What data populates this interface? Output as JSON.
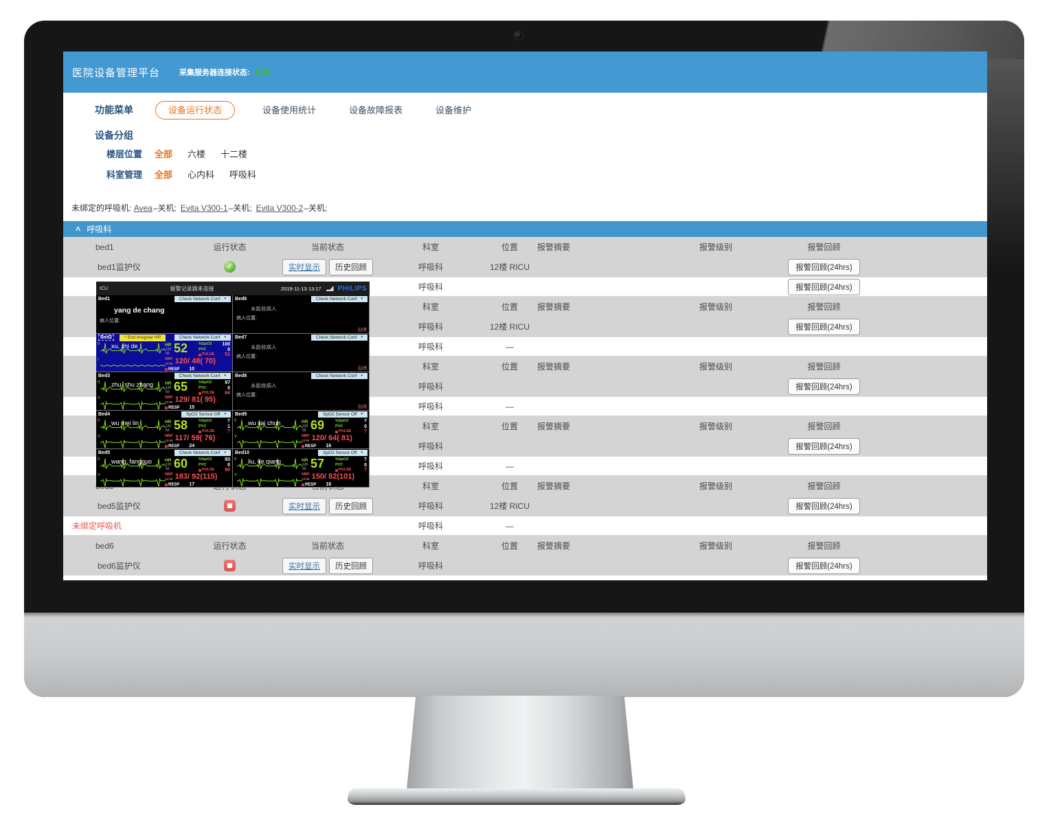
{
  "header": {
    "title": "医院设备管理平台",
    "server_label": "采集服务器连接状态:",
    "server_value": "正常"
  },
  "nav": {
    "menu": "功能菜单",
    "tabs": [
      {
        "label": "设备运行状态",
        "active": true
      },
      {
        "label": "设备使用统计",
        "active": false
      },
      {
        "label": "设备故障报表",
        "active": false
      },
      {
        "label": "设备维护",
        "active": false
      }
    ]
  },
  "filters": {
    "title": "设备分组",
    "rows": [
      {
        "label": "楼层位置",
        "options": [
          "全部",
          "六楼",
          "十二楼"
        ],
        "selected": "全部"
      },
      {
        "label": "科室管理",
        "options": [
          "全部",
          "心内科",
          "呼吸科"
        ],
        "selected": "全部"
      }
    ]
  },
  "unbound": {
    "prefix": "未绑定的呼吸机:",
    "machines": [
      {
        "name": "Avea",
        "state": "–关机;"
      },
      {
        "name": "Evita V300-1",
        "state": "–关机;"
      },
      {
        "name": "Evita V300-2",
        "state": "–关机;"
      }
    ]
  },
  "table": {
    "section_icon": "∧",
    "section_title": "呼吸科",
    "columns": [
      "运行状态",
      "当前状态",
      "科室",
      "位置",
      "报警摘要",
      "报警级别",
      "报警回顾"
    ],
    "actions": [
      "实时显示",
      "历史回顾"
    ],
    "review_label": "报警回顾(24hrs)",
    "groups": [
      {
        "bed": "bed1",
        "rows": [
          {
            "style": "gray",
            "name": "bed1监护仪",
            "status": "running",
            "actions": true,
            "dept": "呼吸科",
            "loc": "12楼 RICU",
            "review": true
          },
          {
            "style": "white",
            "name": "",
            "dept": "呼吸科",
            "loc": "",
            "review": true
          }
        ]
      },
      {
        "bed": "",
        "rows": [
          {
            "style": "gray",
            "name": "",
            "dept": "呼吸科",
            "loc": "12楼 RICU",
            "review": true
          },
          {
            "style": "white",
            "name": "",
            "dept": "呼吸科",
            "loc": "—",
            "review": false
          }
        ]
      },
      {
        "bed": "",
        "rows": [
          {
            "style": "gray",
            "name": "",
            "dept": "呼吸科",
            "loc": "",
            "review": true
          },
          {
            "style": "white",
            "name": "",
            "dept": "呼吸科",
            "loc": "—",
            "review": false
          }
        ]
      },
      {
        "bed": "",
        "rows": [
          {
            "style": "gray",
            "name": "",
            "dept": "呼吸科",
            "loc": "",
            "review": true
          },
          {
            "style": "white",
            "name": "",
            "dept": "呼吸科",
            "loc": "—",
            "review": false
          }
        ]
      },
      {
        "bed": "bed5",
        "rows": [
          {
            "style": "gray",
            "name": "bed5监护仪",
            "status": "stopped",
            "actions": true,
            "dept": "呼吸科",
            "loc": "12楼 RICU",
            "review": true
          },
          {
            "style": "white",
            "name": "未绑定呼吸机",
            "unbound": true,
            "dept": "呼吸科",
            "loc": "—",
            "review": false
          }
        ]
      },
      {
        "bed": "bed6",
        "rows": [
          {
            "style": "gray",
            "name": "bed6监护仪",
            "status": "stopped",
            "actions": true,
            "dept": "呼吸科",
            "loc": "",
            "review": true
          }
        ]
      }
    ]
  },
  "popup": {
    "titlebar": {
      "left": "ICU",
      "center": "报警记录器未连接",
      "datetime": "2019-11-13 13:17",
      "brand": "PHILIPS"
    },
    "vital_labels": {
      "hr": "HR",
      "spo2": "%SpO2",
      "pvc": "PVC",
      "pulse": "PULSE",
      "nbp": "NBP",
      "resp": "RESP",
      "hr_high": "120",
      "hr_low": "50",
      "nbp_time": "13:00"
    },
    "beds": [
      {
        "id": "Bed1",
        "button": "Check Network Conf",
        "name": "yang de chang",
        "location_label": "病人位置:",
        "kind": "named"
      },
      {
        "id": "Bed6",
        "button": "Check Network Conf",
        "message": "未能收病人",
        "location_label": "病人位置:",
        "corner": "起搏",
        "kind": "empty"
      },
      {
        "id": "Bed2",
        "button": "Check Network Conf",
        "alarm": "* End Irregular HR",
        "name": "xu, zhi de",
        "leads": [
          "II",
          "I"
        ],
        "hr": "52",
        "spo2": "100",
        "pvc": "0",
        "pulse": "51",
        "nbp": "120/ 48( 70)",
        "resp": "10",
        "kind": "vitals",
        "selected": true
      },
      {
        "id": "Bed7",
        "button": "Check Network Conf",
        "message": "未能收病人",
        "location_label": "病人位置:",
        "corner": "起搏",
        "kind": "empty"
      },
      {
        "id": "Bed3",
        "button": "Check Network Conf",
        "name": "zhu, shu zhang",
        "leads": [
          "II",
          "V"
        ],
        "hr": "65",
        "spo2": "97",
        "pvc": "0",
        "pulse": "64",
        "nbp": "129/ 81( 95)",
        "resp": "15",
        "kind": "vitals"
      },
      {
        "id": "Bed8",
        "button": "Check Network Conf",
        "message": "未能收病人",
        "location_label": "病人位置:",
        "corner": "起搏",
        "kind": "empty"
      },
      {
        "id": "Bed4",
        "button": "SpO2 Sensor Off",
        "name": "wu mei lin",
        "leads": [
          "II",
          "V"
        ],
        "hr": "58",
        "spo2": "?",
        "pvc": "1",
        "pulse": "?",
        "nbp": "117/ 59( 76)",
        "resp": "24",
        "kind": "vitals"
      },
      {
        "id": "Bed9",
        "button": "SpO2 Sensor Off",
        "name": "wu sai chun",
        "leads": [
          "II",
          "V"
        ],
        "hr": "69",
        "spo2": "?",
        "pvc": "0",
        "pulse": "?",
        "nbp": "120/ 64( 81)",
        "resp": "16",
        "kind": "vitals"
      },
      {
        "id": "Bed5",
        "button": "Check Network Conf",
        "name": "wang, fangguo",
        "leads": [
          "II",
          "V"
        ],
        "hr": "60",
        "spo2": "93",
        "pvc": "0",
        "pulse": "60",
        "nbp": "183/ 92(115)",
        "resp": "17",
        "kind": "vitals"
      },
      {
        "id": "Bed10",
        "button": "SpO2 Sensor Off",
        "name": "liu, ke qiang",
        "leads": [
          "II",
          "V"
        ],
        "hr": "57",
        "spo2": "?",
        "pvc": "0",
        "pulse": "?",
        "nbp": "150/ 82(101)",
        "resp": "16",
        "kind": "vitals"
      }
    ]
  }
}
